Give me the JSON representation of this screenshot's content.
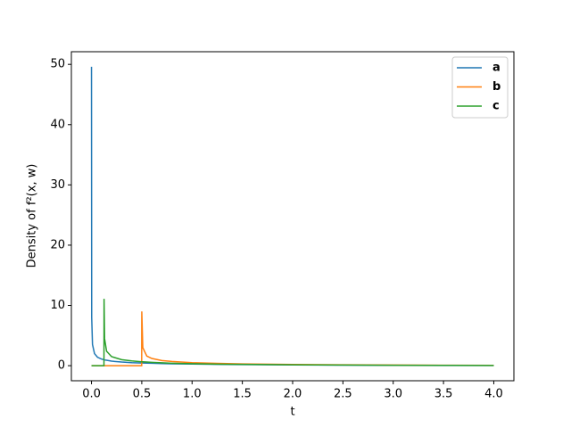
{
  "chart_data": {
    "type": "line",
    "xlabel": "t",
    "ylabel": "Density of f²(x, w)",
    "x": [
      0,
      0.002,
      0.01,
      0.03,
      0.06,
      0.1,
      0.124,
      0.125,
      0.13,
      0.15,
      0.2,
      0.3,
      0.4,
      0.499,
      0.5,
      0.51,
      0.55,
      0.6,
      0.7,
      0.8,
      1.0,
      1.25,
      1.5,
      2.0,
      2.5,
      3.0,
      3.5,
      4.0
    ],
    "series": [
      {
        "name": "a",
        "color": "#1f77b4",
        "values": [
          49.6,
          8,
          3.5,
          2.0,
          1.4,
          1.1,
          1.0,
          1.0,
          0.95,
          0.9,
          0.75,
          0.6,
          0.5,
          0.45,
          0.45,
          0.44,
          0.42,
          0.4,
          0.35,
          0.32,
          0.27,
          0.22,
          0.18,
          0.13,
          0.09,
          0.06,
          0.04,
          0.03
        ]
      },
      {
        "name": "b",
        "color": "#ff7f0e",
        "values": [
          0,
          0,
          0,
          0,
          0,
          0,
          0,
          0,
          0,
          0,
          0,
          0,
          0,
          0,
          9.0,
          3.0,
          1.6,
          1.2,
          0.85,
          0.7,
          0.5,
          0.38,
          0.3,
          0.2,
          0.14,
          0.1,
          0.07,
          0.05
        ]
      },
      {
        "name": "c",
        "color": "#2ca02c",
        "values": [
          0,
          0,
          0,
          0,
          0,
          0,
          0,
          11.1,
          4.5,
          2.4,
          1.5,
          1.0,
          0.8,
          0.65,
          0.65,
          0.64,
          0.6,
          0.55,
          0.47,
          0.41,
          0.33,
          0.26,
          0.21,
          0.14,
          0.1,
          0.07,
          0.05,
          0.035
        ]
      }
    ],
    "xlim": [
      -0.2,
      4.2
    ],
    "ylim": [
      -2.5,
      52.1
    ],
    "xticks": [
      {
        "value": 0,
        "label": "0.0"
      },
      {
        "value": 0.5,
        "label": "0.5"
      },
      {
        "value": 1,
        "label": "1.0"
      },
      {
        "value": 1.5,
        "label": "1.5"
      },
      {
        "value": 2,
        "label": "2.0"
      },
      {
        "value": 2.5,
        "label": "2.5"
      },
      {
        "value": 3,
        "label": "3.0"
      },
      {
        "value": 3.5,
        "label": "3.5"
      },
      {
        "value": 4,
        "label": "4.0"
      }
    ],
    "yticks": [
      0,
      10,
      20,
      30,
      40,
      50
    ],
    "legend": "upper right"
  }
}
